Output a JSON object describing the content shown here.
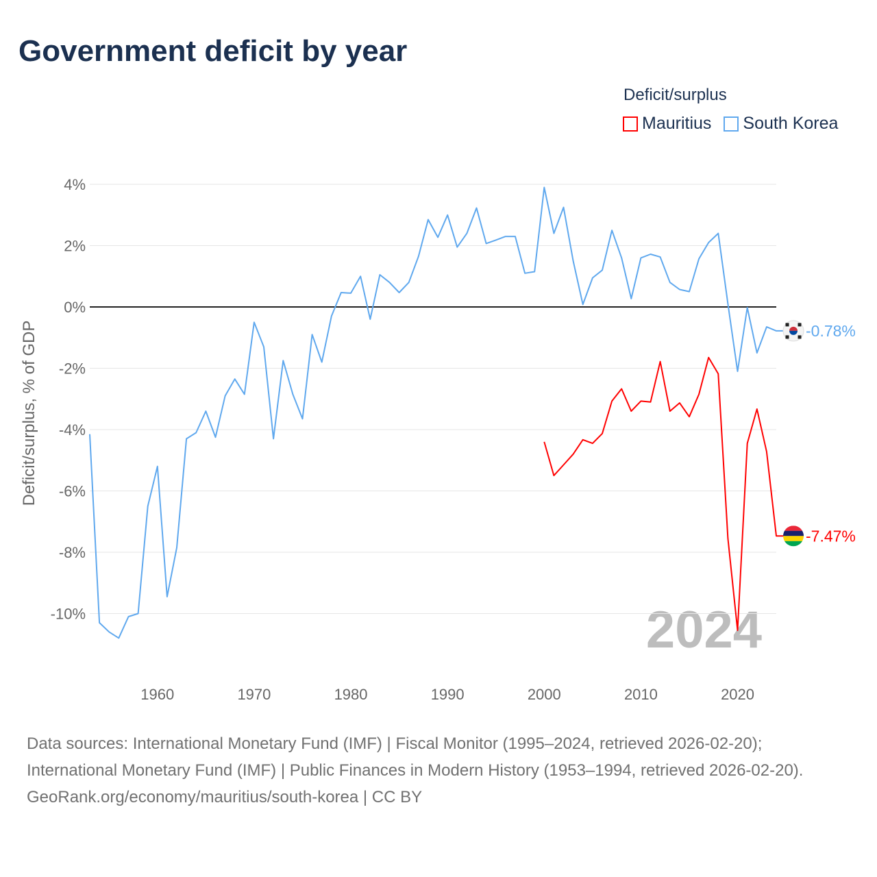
{
  "chart_data": {
    "type": "line",
    "title": "Government deficit by year",
    "ylabel": "Deficit/surplus, % of GDP",
    "xlabel": "",
    "legend_title": "Deficit/surplus",
    "legend_position": "top-right",
    "year_watermark": "2024",
    "xlim": [
      1953,
      2024
    ],
    "ylim": [
      -11.8,
      4.5
    ],
    "x_ticks": [
      1960,
      1970,
      1980,
      1990,
      2000,
      2010,
      2020
    ],
    "x_tick_labels": [
      "1960",
      "1970",
      "1980",
      "1990",
      "2000",
      "2010",
      "2020"
    ],
    "y_ticks": [
      4,
      2,
      0,
      -2,
      -4,
      -6,
      -8,
      -10
    ],
    "y_tick_labels": [
      "4%",
      "2%",
      "0%",
      "-2%",
      "-4%",
      "-6%",
      "-8%",
      "-10%"
    ],
    "grid": true,
    "series": [
      {
        "name": "Mauritius",
        "color": "#ff0000",
        "end_label": "-7.47%",
        "start_year": 2000,
        "values": [
          -4.4,
          -5.5,
          -5.15,
          -4.8,
          -4.33,
          -4.45,
          -4.13,
          -3.07,
          -2.67,
          -3.4,
          -3.07,
          -3.1,
          -1.78,
          -3.4,
          -3.13,
          -3.58,
          -2.85,
          -1.65,
          -2.18,
          -7.55,
          -10.55,
          -4.45,
          -3.33,
          -4.72,
          -7.47
        ]
      },
      {
        "name": "South Korea",
        "color": "#5fa8ee",
        "end_label": "-0.78%",
        "start_year": 1953,
        "values": [
          -4.15,
          -10.3,
          -10.6,
          -10.8,
          -10.1,
          -10.0,
          -6.5,
          -5.2,
          -9.45,
          -7.85,
          -4.3,
          -4.1,
          -3.4,
          -4.25,
          -2.9,
          -2.35,
          -2.85,
          -0.5,
          -1.3,
          -4.3,
          -1.75,
          -2.85,
          -3.65,
          -0.9,
          -1.8,
          -0.3,
          0.47,
          0.45,
          1.0,
          -0.4,
          1.05,
          0.8,
          0.47,
          0.8,
          1.65,
          2.85,
          2.27,
          3.0,
          1.95,
          2.4,
          3.23,
          2.07,
          2.18,
          2.3,
          2.3,
          1.1,
          1.15,
          3.9,
          2.4,
          3.25,
          1.5,
          0.08,
          0.95,
          1.2,
          2.5,
          1.6,
          0.27,
          1.6,
          1.72,
          1.63,
          0.8,
          0.57,
          0.5,
          1.57,
          2.1,
          2.4,
          0.1,
          -2.1,
          -0.02,
          -1.5,
          -0.65,
          -0.78
        ]
      }
    ]
  },
  "source": {
    "line1": "Data sources: International Monetary Fund (IMF) | Fiscal Monitor (1995–2024, retrieved 2026-02-20); International Monetary Fund (IMF) | Public Finances in Modern History (1953–1994, retrieved 2026-02-20).",
    "line2": "GeoRank.org/economy/mauritius/south-korea | CC BY"
  }
}
